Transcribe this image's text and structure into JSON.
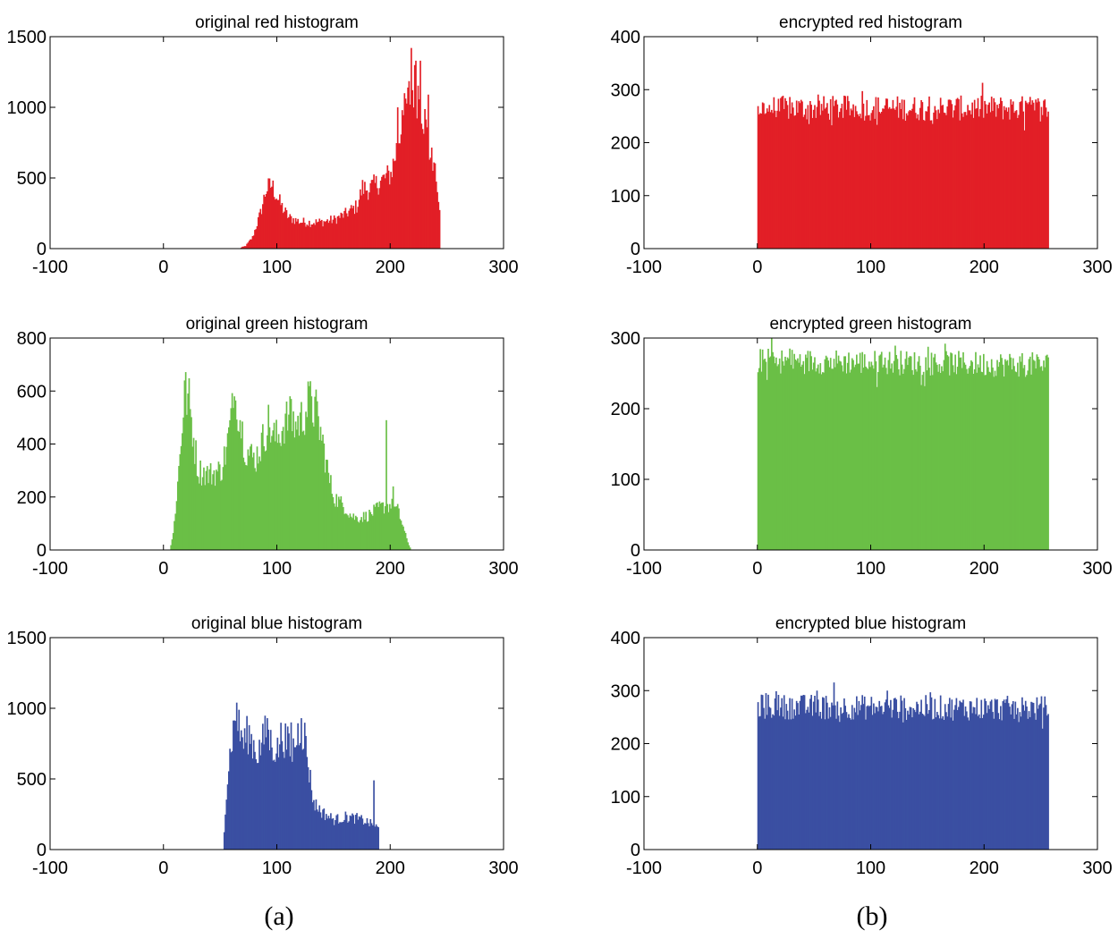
{
  "captions": [
    "(a)",
    "(b)"
  ],
  "chart_data": [
    {
      "type": "bar",
      "title": "original red histogram",
      "color": "#e21f26",
      "xlim": [
        -100,
        300
      ],
      "ylim": [
        0,
        1500
      ],
      "xticks": [
        -100,
        0,
        100,
        200,
        300
      ],
      "yticks": [
        0,
        500,
        1000,
        1500
      ],
      "xlabel": "",
      "ylabel": "",
      "range": [
        66,
        243
      ],
      "keypoints": [
        [
          66,
          0
        ],
        [
          72,
          20
        ],
        [
          78,
          80
        ],
        [
          85,
          250
        ],
        [
          90,
          420
        ],
        [
          95,
          450
        ],
        [
          100,
          360
        ],
        [
          105,
          280
        ],
        [
          110,
          220
        ],
        [
          120,
          190
        ],
        [
          130,
          185
        ],
        [
          140,
          190
        ],
        [
          150,
          205
        ],
        [
          160,
          245
        ],
        [
          170,
          300
        ],
        [
          175,
          430
        ],
        [
          180,
          420
        ],
        [
          190,
          470
        ],
        [
          200,
          530
        ],
        [
          205,
          700
        ],
        [
          210,
          900
        ],
        [
          215,
          1050
        ],
        [
          220,
          1150
        ],
        [
          225,
          1100
        ],
        [
          230,
          900
        ],
        [
          235,
          650
        ],
        [
          240,
          500
        ],
        [
          243,
          300
        ]
      ],
      "spikes": [
        [
          218,
          1420
        ],
        [
          215,
          1140
        ],
        [
          222,
          1330
        ],
        [
          226,
          1330
        ],
        [
          212,
          1100
        ],
        [
          206,
          1000
        ],
        [
          210,
          980
        ],
        [
          233,
          1090
        ],
        [
          238,
          610
        ],
        [
          241,
          400
        ]
      ]
    },
    {
      "type": "bar",
      "title": "encrypted red histogram",
      "color": "#e21f26",
      "xlim": [
        -100,
        300
      ],
      "ylim": [
        0,
        400
      ],
      "xticks": [
        -100,
        0,
        100,
        200,
        300
      ],
      "yticks": [
        0,
        100,
        200,
        300,
        400
      ],
      "xlabel": "",
      "ylabel": "",
      "range": [
        0,
        256
      ],
      "keypoints": [
        [
          0,
          265
        ],
        [
          128,
          265
        ],
        [
          256,
          265
        ]
      ],
      "spikes": []
    },
    {
      "type": "bar",
      "title": "original green histogram",
      "color": "#6abf46",
      "xlim": [
        -100,
        300
      ],
      "ylim": [
        0,
        800
      ],
      "xticks": [
        -100,
        0,
        100,
        200,
        300
      ],
      "yticks": [
        0,
        200,
        400,
        600,
        800
      ],
      "xlabel": "",
      "ylabel": "",
      "range": [
        5,
        218
      ],
      "keypoints": [
        [
          5,
          0
        ],
        [
          8,
          60
        ],
        [
          12,
          250
        ],
        [
          15,
          420
        ],
        [
          18,
          600
        ],
        [
          22,
          560
        ],
        [
          26,
          420
        ],
        [
          30,
          300
        ],
        [
          40,
          285
        ],
        [
          50,
          300
        ],
        [
          55,
          380
        ],
        [
          60,
          520
        ],
        [
          64,
          570
        ],
        [
          68,
          470
        ],
        [
          72,
          380
        ],
        [
          80,
          340
        ],
        [
          86,
          400
        ],
        [
          92,
          480
        ],
        [
          96,
          430
        ],
        [
          100,
          420
        ],
        [
          106,
          480
        ],
        [
          110,
          500
        ],
        [
          116,
          470
        ],
        [
          122,
          500
        ],
        [
          128,
          560
        ],
        [
          134,
          520
        ],
        [
          140,
          400
        ],
        [
          146,
          260
        ],
        [
          150,
          200
        ],
        [
          155,
          180
        ],
        [
          160,
          160
        ],
        [
          165,
          130
        ],
        [
          170,
          120
        ],
        [
          180,
          130
        ],
        [
          190,
          160
        ],
        [
          200,
          170
        ],
        [
          206,
          150
        ],
        [
          210,
          100
        ],
        [
          214,
          40
        ],
        [
          218,
          0
        ]
      ],
      "spikes": [
        [
          18,
          640
        ],
        [
          62,
          580
        ],
        [
          112,
          570
        ],
        [
          130,
          580
        ],
        [
          196,
          490
        ],
        [
          202,
          240
        ]
      ]
    },
    {
      "type": "bar",
      "title": "encrypted green histogram",
      "color": "#6abf46",
      "xlim": [
        -100,
        300
      ],
      "ylim": [
        0,
        300
      ],
      "xticks": [
        -100,
        0,
        100,
        200,
        300
      ],
      "yticks": [
        0,
        100,
        200,
        300
      ],
      "xlabel": "",
      "ylabel": "",
      "range": [
        0,
        256
      ],
      "keypoints": [
        [
          0,
          268
        ],
        [
          128,
          265
        ],
        [
          256,
          262
        ]
      ],
      "spikes": [
        [
          12,
          300
        ]
      ]
    },
    {
      "type": "bar",
      "title": "original blue histogram",
      "color": "#3a4fa2",
      "xlim": [
        -100,
        300
      ],
      "ylim": [
        0,
        1500
      ],
      "xticks": [
        -100,
        0,
        100,
        200,
        300
      ],
      "yticks": [
        0,
        500,
        1000,
        1500
      ],
      "xlabel": "",
      "ylabel": "",
      "range": [
        52,
        189
      ],
      "keypoints": [
        [
          52,
          0
        ],
        [
          54,
          300
        ],
        [
          57,
          600
        ],
        [
          60,
          800
        ],
        [
          63,
          920
        ],
        [
          66,
          860
        ],
        [
          70,
          760
        ],
        [
          74,
          820
        ],
        [
          78,
          760
        ],
        [
          82,
          680
        ],
        [
          86,
          740
        ],
        [
          90,
          840
        ],
        [
          95,
          740
        ],
        [
          100,
          700
        ],
        [
          104,
          820
        ],
        [
          108,
          760
        ],
        [
          112,
          690
        ],
        [
          116,
          760
        ],
        [
          120,
          880
        ],
        [
          124,
          800
        ],
        [
          128,
          550
        ],
        [
          132,
          330
        ],
        [
          140,
          260
        ],
        [
          150,
          210
        ],
        [
          160,
          230
        ],
        [
          170,
          220
        ],
        [
          178,
          200
        ],
        [
          185,
          170
        ],
        [
          189,
          150
        ]
      ],
      "spikes": [
        [
          64,
          1040
        ],
        [
          91,
          930
        ],
        [
          112,
          900
        ],
        [
          121,
          930
        ],
        [
          185,
          490
        ]
      ]
    },
    {
      "type": "bar",
      "title": "encrypted blue histogram",
      "color": "#3a4fa2",
      "xlim": [
        -100,
        300
      ],
      "ylim": [
        0,
        400
      ],
      "xticks": [
        -100,
        0,
        100,
        200,
        300
      ],
      "yticks": [
        0,
        100,
        200,
        300,
        400
      ],
      "xlabel": "",
      "ylabel": "",
      "range": [
        0,
        256
      ],
      "keypoints": [
        [
          0,
          270
        ],
        [
          128,
          268
        ],
        [
          256,
          266
        ]
      ],
      "spikes": [
        [
          52,
          300
        ],
        [
          114,
          300
        ]
      ]
    }
  ]
}
